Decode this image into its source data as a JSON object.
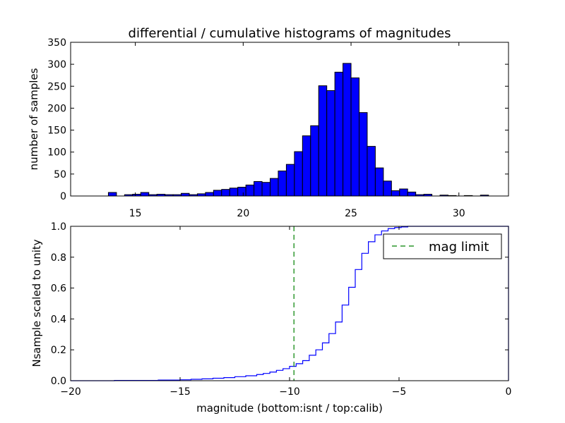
{
  "chart_data": [
    {
      "type": "bar",
      "title": "differential / cumulative histograms of magnitudes",
      "ylabel": "number of samples",
      "xlim": [
        12.0,
        32.3
      ],
      "ylim": [
        0,
        350
      ],
      "xticks": [
        15,
        20,
        25,
        30
      ],
      "yticks": [
        0,
        50,
        100,
        150,
        200,
        250,
        300,
        350
      ],
      "bin_width": 0.375,
      "bin_left_edges": [
        13.75,
        14.5,
        14.875,
        15.25,
        15.625,
        16.0,
        16.375,
        16.75,
        17.125,
        17.5,
        17.875,
        18.25,
        18.625,
        19.0,
        19.375,
        19.75,
        20.125,
        20.5,
        20.875,
        21.25,
        21.625,
        22.0,
        22.375,
        22.75,
        23.125,
        23.5,
        23.875,
        24.25,
        24.625,
        25.0,
        25.375,
        25.75,
        26.125,
        26.5,
        26.875,
        27.25,
        27.625,
        28.0,
        28.375,
        28.75,
        29.125,
        29.5,
        29.875,
        30.25,
        30.625,
        31.0
      ],
      "values": [
        8,
        3,
        4,
        8,
        3,
        4,
        3,
        3,
        6,
        3,
        5,
        8,
        13,
        15,
        18,
        20,
        25,
        33,
        31,
        40,
        57,
        72,
        101,
        137,
        160,
        251,
        240,
        282,
        302,
        269,
        190,
        113,
        64,
        34,
        12,
        16,
        9,
        3,
        4,
        0,
        2,
        1,
        0,
        1,
        0,
        2
      ],
      "face_color": "#0000ff",
      "edge_color": "#000000",
      "grid": false
    },
    {
      "type": "line",
      "drawstyle": "steps",
      "xlabel": "magnitude (bottom:isnt / top:calib)",
      "ylabel": "Nsample scaled to unity",
      "xlim": [
        -20,
        0
      ],
      "ylim": [
        0.0,
        1.0
      ],
      "xticks": [
        -20,
        -15,
        -10,
        -5,
        0
      ],
      "yticks": [
        "0.0",
        "0.2",
        "0.4",
        "0.6",
        "0.8",
        "1.0"
      ],
      "series": [
        {
          "color": "#0000ff",
          "x": [
            -20.0,
            -18.0,
            -16.0,
            -15.0,
            -14.5,
            -14.0,
            -13.5,
            -13.0,
            -12.5,
            -12.0,
            -11.5,
            -11.2,
            -10.9,
            -10.6,
            -10.3,
            -10.0,
            -9.7,
            -9.4,
            -9.1,
            -8.8,
            -8.5,
            -8.2,
            -7.9,
            -7.6,
            -7.3,
            -7.0,
            -6.7,
            -6.4,
            -6.1,
            -5.8,
            -5.5,
            -5.2,
            -4.9,
            -4.6,
            -0.1
          ],
          "y": [
            0.0,
            0.002,
            0.004,
            0.006,
            0.009,
            0.012,
            0.016,
            0.02,
            0.026,
            0.032,
            0.04,
            0.047,
            0.056,
            0.067,
            0.078,
            0.093,
            0.11,
            0.13,
            0.165,
            0.2,
            0.245,
            0.305,
            0.38,
            0.49,
            0.605,
            0.72,
            0.825,
            0.9,
            0.945,
            0.97,
            0.985,
            0.992,
            0.996,
            1.0,
            1.0
          ]
        }
      ],
      "vlines": [
        {
          "label": "mag limit",
          "x": -9.8,
          "color": "#008000",
          "style": "dashed"
        }
      ],
      "legend_placement": "top-right",
      "grid": false
    }
  ]
}
